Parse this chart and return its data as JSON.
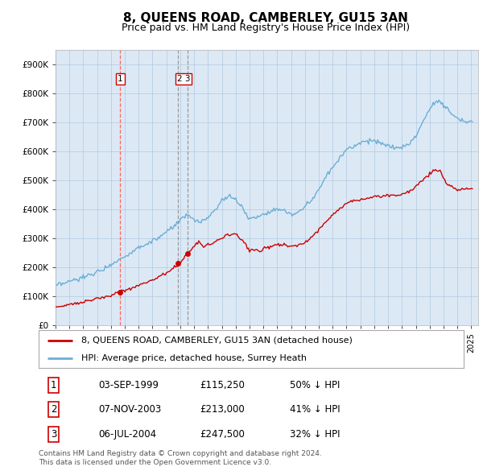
{
  "title": "8, QUEENS ROAD, CAMBERLEY, GU15 3AN",
  "subtitle": "Price paid vs. HM Land Registry's House Price Index (HPI)",
  "xlim_start": 1995.0,
  "xlim_end": 2025.5,
  "ylim": [
    0,
    950000
  ],
  "yticks": [
    0,
    100000,
    200000,
    300000,
    400000,
    500000,
    600000,
    700000,
    800000,
    900000
  ],
  "ytick_labels": [
    "£0",
    "£100K",
    "£200K",
    "£300K",
    "£400K",
    "£500K",
    "£600K",
    "£700K",
    "£800K",
    "£900K"
  ],
  "hpi_color": "#6baed6",
  "price_color": "#cc0000",
  "vline1_color": "#ff6666",
  "vline23_color": "#999999",
  "title_fontsize": 11,
  "subtitle_fontsize": 9,
  "purchases": [
    {
      "label": "1",
      "date_num": 1999.67,
      "price": 115250,
      "vline_color": "#ff6666",
      "vline_style": "--"
    },
    {
      "label": "2",
      "date_num": 2003.85,
      "price": 213000,
      "vline_color": "#999999",
      "vline_style": "--"
    },
    {
      "label": "3",
      "date_num": 2004.51,
      "price": 247500,
      "vline_color": "#999999",
      "vline_style": "--"
    }
  ],
  "legend_entries": [
    "8, QUEENS ROAD, CAMBERLEY, GU15 3AN (detached house)",
    "HPI: Average price, detached house, Surrey Heath"
  ],
  "table_rows": [
    [
      "1",
      "03-SEP-1999",
      "£115,250",
      "50% ↓ HPI"
    ],
    [
      "2",
      "07-NOV-2003",
      "£213,000",
      "41% ↓ HPI"
    ],
    [
      "3",
      "06-JUL-2004",
      "£247,500",
      "32% ↓ HPI"
    ]
  ],
  "footnote": "Contains HM Land Registry data © Crown copyright and database right 2024.\nThis data is licensed under the Open Government Licence v3.0.",
  "background_color": "#ffffff",
  "plot_bg_color": "#dce9f5"
}
